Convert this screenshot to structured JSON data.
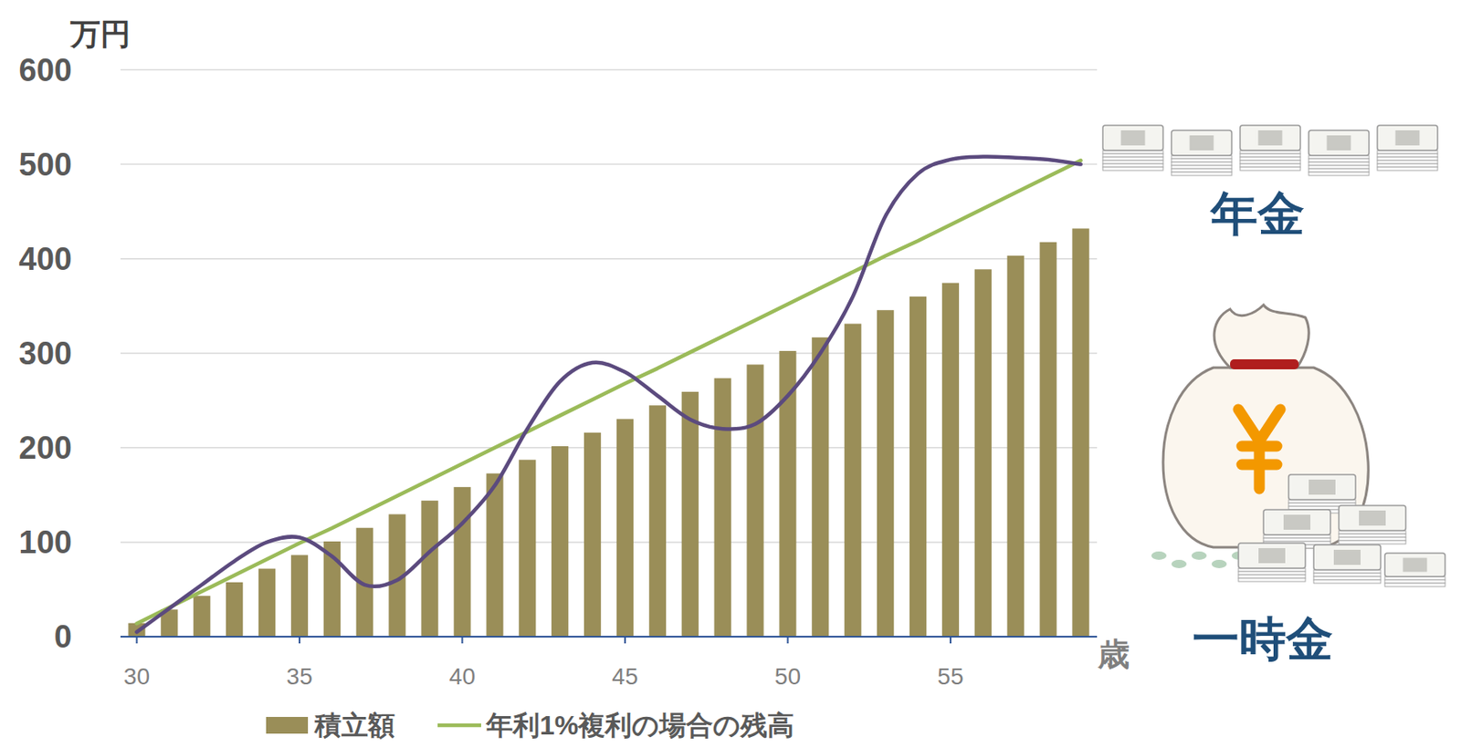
{
  "chart_data": {
    "type": "bar",
    "y_label": "万円",
    "x_label": "歳",
    "annotations": [
      "年金",
      "一時金"
    ],
    "x": [
      30,
      31,
      32,
      33,
      34,
      35,
      36,
      37,
      38,
      39,
      40,
      41,
      42,
      43,
      44,
      45,
      46,
      47,
      48,
      49,
      50,
      51,
      52,
      53,
      54,
      55,
      56,
      57,
      58,
      59
    ],
    "xlim": [
      29.5,
      59.5
    ],
    "xticks": [
      30,
      35,
      40,
      45,
      50,
      55
    ],
    "ylim": [
      0,
      600
    ],
    "yticks": [
      0,
      100,
      200,
      300,
      400,
      500,
      600
    ],
    "grid": true,
    "legend": "bottom",
    "series": [
      {
        "name": "積立額",
        "type": "bar",
        "color": "#9a8e58",
        "values": [
          14.4,
          28.8,
          43.2,
          57.6,
          72,
          86.4,
          100.8,
          115.2,
          129.6,
          144,
          158.4,
          172.8,
          187.2,
          201.6,
          216,
          230.4,
          244.8,
          259.2,
          273.6,
          288,
          302.4,
          316.8,
          331.2,
          345.6,
          360,
          374.4,
          388.8,
          403.2,
          417.6,
          432
        ]
      },
      {
        "name": "年利1%複利の場合の残高",
        "type": "line",
        "color": "#9bbb59",
        "values": [
          14,
          31,
          48,
          65,
          82,
          99,
          115,
          132,
          149,
          166,
          183,
          200,
          217,
          234,
          251,
          268,
          284,
          301,
          318,
          335,
          352,
          369,
          386,
          403,
          419,
          436,
          453,
          470,
          487,
          504
        ]
      },
      {
        "type": "line",
        "line_style": "smooth",
        "color": "#5b4a7e",
        "values": [
          5,
          30,
          55,
          80,
          100,
          105,
          85,
          55,
          60,
          90,
          120,
          160,
          220,
          270,
          290,
          280,
          255,
          230,
          220,
          225,
          255,
          300,
          360,
          445,
          490,
          505,
          508,
          507,
          505,
          500
        ]
      }
    ]
  }
}
